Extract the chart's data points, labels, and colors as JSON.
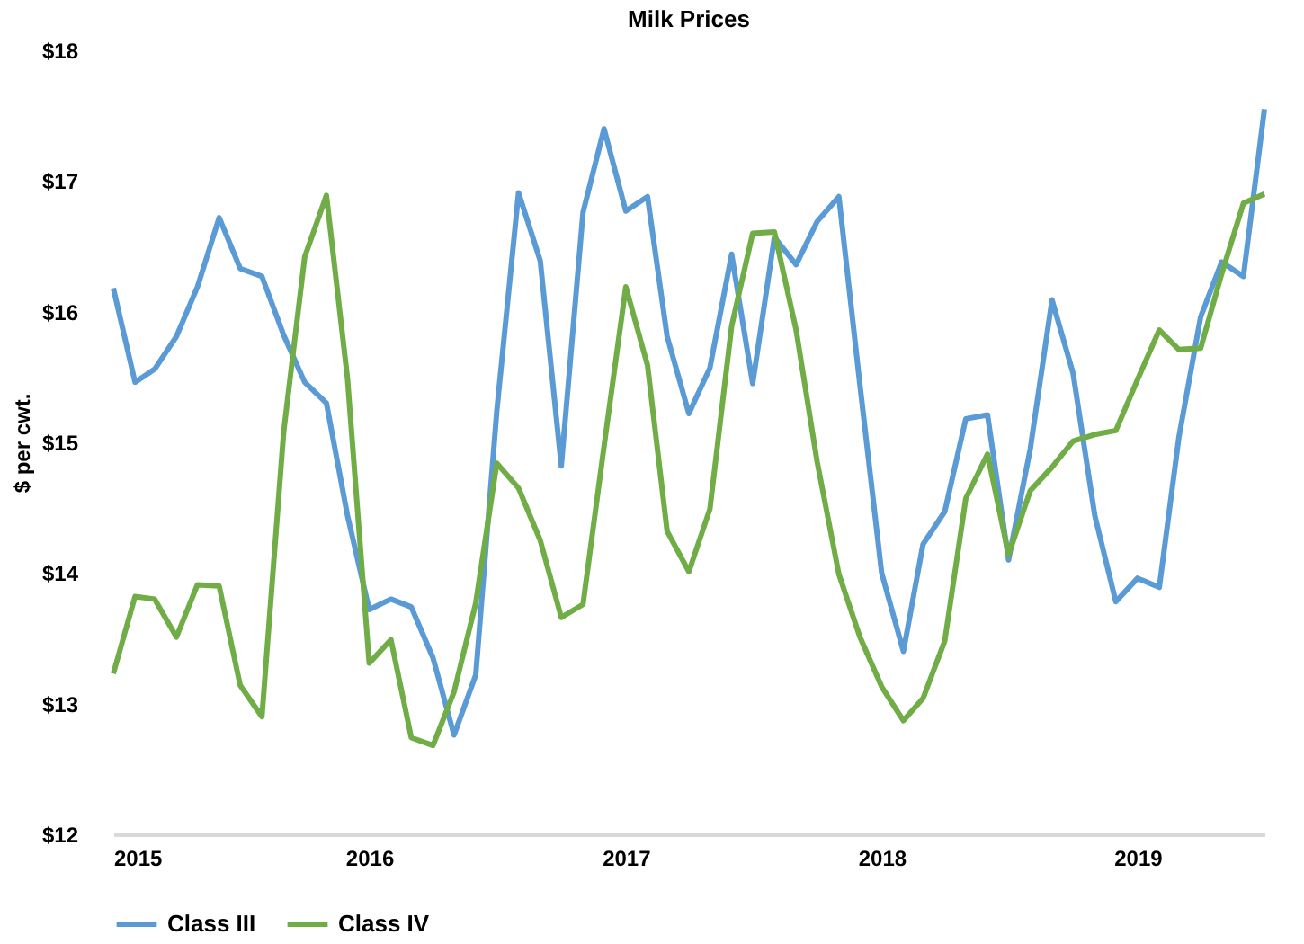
{
  "chart_data": {
    "type": "line",
    "title": "Milk Prices",
    "ylabel": "$ per cwt.",
    "x": [
      "2015-01",
      "2015-02",
      "2015-03",
      "2015-04",
      "2015-05",
      "2015-06",
      "2015-07",
      "2015-08",
      "2015-09",
      "2015-10",
      "2015-11",
      "2015-12",
      "2016-01",
      "2016-02",
      "2016-03",
      "2016-04",
      "2016-05",
      "2016-06",
      "2016-07",
      "2016-08",
      "2016-09",
      "2016-10",
      "2016-11",
      "2016-12",
      "2017-01",
      "2017-02",
      "2017-03",
      "2017-04",
      "2017-05",
      "2017-06",
      "2017-07",
      "2017-08",
      "2017-09",
      "2017-10",
      "2017-11",
      "2017-12",
      "2018-01",
      "2018-02",
      "2018-03",
      "2018-04",
      "2018-05",
      "2018-06",
      "2018-07",
      "2018-08",
      "2018-09",
      "2018-10",
      "2018-11",
      "2018-12",
      "2019-01",
      "2019-02",
      "2019-03",
      "2019-04",
      "2019-05",
      "2019-06",
      "2019-07"
    ],
    "series": [
      {
        "name": "Class III",
        "color": "#5b9bd5",
        "values": [
          16.18,
          15.46,
          15.56,
          15.81,
          16.19,
          16.72,
          16.33,
          16.27,
          15.82,
          15.46,
          15.3,
          14.44,
          13.72,
          13.8,
          13.74,
          13.35,
          12.76,
          13.22,
          15.24,
          16.91,
          16.39,
          14.82,
          16.76,
          17.4,
          16.77,
          16.88,
          15.81,
          15.22,
          15.57,
          16.44,
          15.45,
          16.57,
          16.36,
          16.69,
          16.88,
          15.44,
          14.0,
          13.4,
          14.22,
          14.47,
          15.18,
          15.21,
          14.1,
          14.95,
          16.09,
          15.53,
          14.44,
          13.78,
          13.96,
          13.89,
          15.04,
          15.96,
          16.38,
          16.27,
          17.55
        ]
      },
      {
        "name": "Class IV",
        "color": "#70ad47",
        "values": [
          13.23,
          13.82,
          13.8,
          13.51,
          13.91,
          13.9,
          13.14,
          12.9,
          15.08,
          16.42,
          16.89,
          15.49,
          13.31,
          13.49,
          12.74,
          12.68,
          13.09,
          13.77,
          14.84,
          14.65,
          14.25,
          13.66,
          13.76,
          14.97,
          16.19,
          15.59,
          14.32,
          14.01,
          14.49,
          15.89,
          16.6,
          16.61,
          15.86,
          14.85,
          13.99,
          13.51,
          13.13,
          12.87,
          13.04,
          13.48,
          14.57,
          14.91,
          14.14,
          14.63,
          14.81,
          15.01,
          15.06,
          15.09,
          15.48,
          15.86,
          15.71,
          15.72,
          16.29,
          16.83,
          16.9
        ]
      }
    ],
    "ylim": [
      12,
      18
    ],
    "yticks": [
      {
        "value": 12,
        "label": "$12"
      },
      {
        "value": 13,
        "label": "$13"
      },
      {
        "value": 14,
        "label": "$14"
      },
      {
        "value": 15,
        "label": "$15"
      },
      {
        "value": 16,
        "label": "$16"
      },
      {
        "value": 17,
        "label": "$17"
      },
      {
        "value": 18,
        "label": "$18"
      }
    ],
    "xlim": [
      "2015-01",
      "2019-07"
    ],
    "xticks": [
      {
        "value": "2015-01",
        "label": "2015"
      },
      {
        "value": "2016-01",
        "label": "2016"
      },
      {
        "value": "2017-01",
        "label": "2017"
      },
      {
        "value": "2018-01",
        "label": "2018"
      },
      {
        "value": "2019-01",
        "label": "2019"
      }
    ],
    "grid": false,
    "legend": "bottom",
    "marker": "none",
    "line_style": "solid"
  }
}
